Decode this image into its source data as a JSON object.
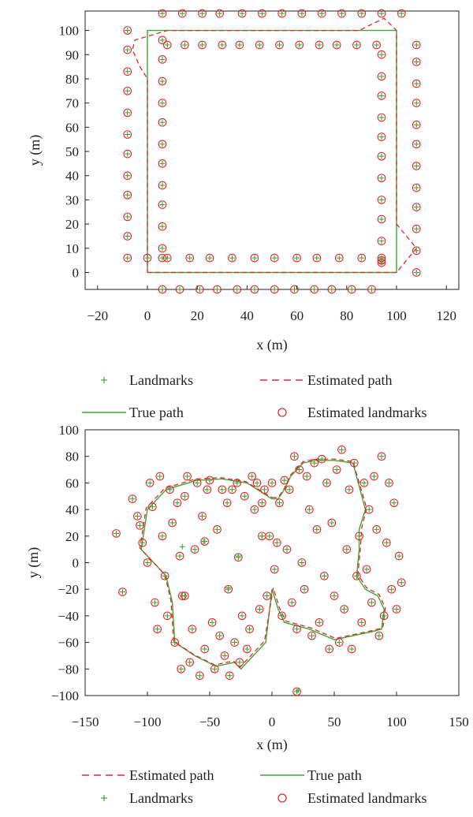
{
  "chart_data": [
    {
      "type": "scatter",
      "xlabel": "x (m)",
      "ylabel": "y (m)",
      "xlim": [
        -25,
        125
      ],
      "ylim": [
        -7,
        108
      ],
      "xticks": [
        "−20",
        "0",
        "20",
        "40",
        "60",
        "80",
        "100",
        "120"
      ],
      "xtick_values": [
        -20,
        0,
        20,
        40,
        60,
        80,
        100,
        120
      ],
      "yticks": [
        "0",
        "10",
        "20",
        "30",
        "40",
        "50",
        "60",
        "70",
        "80",
        "90",
        "100"
      ],
      "ytick_values": [
        0,
        10,
        20,
        30,
        40,
        50,
        60,
        70,
        80,
        90,
        100
      ],
      "legend": [
        {
          "label": "Landmarks",
          "marker": "plus",
          "color": "#3aa935"
        },
        {
          "label": "Estimated path",
          "marker": "dashed-line",
          "color": "#e8262b"
        },
        {
          "label": "True path",
          "marker": "solid-line",
          "color": "#3aa935"
        },
        {
          "label": "Estimated landmarks",
          "marker": "circle",
          "color": "#e8262b"
        }
      ],
      "legend_placement": "below",
      "true_path": {
        "x": [
          0,
          100,
          100,
          0,
          0
        ],
        "y": [
          0,
          0,
          100,
          100,
          0
        ]
      },
      "estimated_path": {
        "x": [
          0,
          100,
          104,
          108,
          100,
          100,
          95,
          85,
          8,
          -5,
          -6,
          -3,
          0,
          0
        ],
        "y": [
          0,
          0,
          5,
          10,
          20,
          100,
          105,
          100,
          100,
          96,
          92,
          85,
          80,
          0
        ]
      },
      "landmarks": {
        "x": [
          6,
          14,
          22,
          29,
          38,
          46,
          54,
          62,
          70,
          78,
          86,
          94,
          102,
          -8,
          -8,
          -8,
          -8,
          -8,
          -8,
          -8,
          -8,
          -8,
          -8,
          -8,
          -8,
          6,
          13,
          21,
          28,
          36,
          43,
          51,
          59,
          67,
          74,
          82,
          90,
          6,
          6,
          6,
          6,
          6,
          6,
          6,
          6,
          6,
          6,
          6,
          6,
          8,
          15,
          22,
          30,
          37,
          45,
          53,
          61,
          69,
          76,
          84,
          92,
          94,
          94,
          94,
          94,
          94,
          94,
          94,
          94,
          94,
          94,
          94,
          94,
          0,
          8,
          17,
          25,
          34,
          43,
          51,
          60,
          68,
          77,
          86,
          94,
          108,
          108,
          108,
          108,
          108,
          108,
          108,
          108,
          108,
          108,
          108,
          108
        ],
        "y": [
          107,
          107,
          107,
          107,
          107,
          107,
          107,
          107,
          107,
          107,
          107,
          107,
          107,
          6,
          15,
          23,
          32,
          40,
          49,
          57,
          66,
          75,
          83,
          92,
          100,
          -7,
          -7,
          -7,
          -7,
          -7,
          -7,
          -7,
          -7,
          -7,
          -7,
          -7,
          -7,
          10,
          19,
          28,
          36,
          45,
          53,
          62,
          70,
          79,
          88,
          96,
          6,
          94,
          94,
          94,
          94,
          94,
          94,
          94,
          94,
          94,
          94,
          94,
          94,
          4,
          13,
          22,
          30,
          39,
          48,
          56,
          64,
          73,
          81,
          90,
          5,
          6,
          6,
          6,
          6,
          6,
          6,
          6,
          6,
          6,
          6,
          6,
          6,
          0,
          9,
          18,
          27,
          35,
          44,
          53,
          61,
          70,
          78,
          87,
          94
        ]
      }
    },
    {
      "type": "scatter",
      "xlabel": "x (m)",
      "ylabel": "y (m)",
      "xlim": [
        -150,
        150
      ],
      "ylim": [
        -100,
        100
      ],
      "xticks": [
        "−150",
        "−100",
        "−50",
        "0",
        "50",
        "100",
        "150"
      ],
      "xtick_values": [
        -150,
        -100,
        -50,
        0,
        50,
        100,
        150
      ],
      "yticks": [
        "100",
        "80",
        "60",
        "40",
        "20",
        "0",
        "−20",
        "−40",
        "−60",
        "−80",
        "−100"
      ],
      "ytick_values": [
        100,
        80,
        60,
        40,
        20,
        0,
        -20,
        -40,
        -60,
        -80,
        -100
      ],
      "legend": [
        {
          "label": "Estimated path",
          "marker": "dashed-line",
          "color": "#e8262b"
        },
        {
          "label": "True path",
          "marker": "solid-line",
          "color": "#3aa935"
        },
        {
          "label": "Landmarks",
          "marker": "plus",
          "color": "#3aa935"
        },
        {
          "label": "Estimated landmarks",
          "marker": "circle",
          "color": "#e8262b"
        }
      ],
      "legend_placement": "below",
      "true_path": {
        "x": [
          0,
          5,
          10,
          15,
          25,
          35,
          50,
          65,
          75,
          70,
          70,
          68,
          75,
          85,
          90,
          88,
          80,
          65,
          50,
          30,
          10,
          5,
          0,
          -5,
          -15,
          -25,
          -30,
          -45,
          -62,
          -78,
          -80,
          -85,
          -90,
          -105,
          -100,
          -85,
          -60,
          -40,
          -20,
          0
        ],
        "y": [
          48,
          48,
          55,
          65,
          75,
          77,
          77,
          75,
          40,
          25,
          10,
          -10,
          -20,
          -25,
          -35,
          -50,
          -52,
          -55,
          -58,
          -50,
          -45,
          -35,
          -20,
          -60,
          -70,
          -80,
          -75,
          -78,
          -70,
          -60,
          -30,
          -10,
          -5,
          10,
          40,
          55,
          62,
          63,
          60,
          48
        ]
      },
      "estimated_path": {
        "x": [
          0,
          5,
          10,
          15,
          25,
          35,
          50,
          65,
          76,
          72,
          71,
          69,
          76,
          86,
          91,
          89,
          81,
          66,
          51,
          31,
          11,
          6,
          1,
          -6,
          -16,
          -26,
          -31,
          -46,
          -63,
          -79,
          -81,
          -86,
          -91,
          -106,
          -101,
          -86,
          -61,
          -41,
          -21,
          0
        ],
        "y": [
          49,
          49,
          56,
          66,
          76,
          78,
          78,
          76,
          41,
          26,
          11,
          -9,
          -19,
          -24,
          -34,
          -49,
          -51,
          -54,
          -57,
          -49,
          -44,
          -34,
          -19,
          -59,
          -69,
          -79,
          -74,
          -77,
          -69,
          -59,
          -29,
          -9,
          -4,
          11,
          41,
          56,
          63,
          64,
          61,
          49
        ]
      },
      "landmarks": {
        "x": [
          -125,
          -120,
          -112,
          -108,
          -106,
          -104,
          -100,
          -98,
          -96,
          -94,
          -92,
          -90,
          -88,
          -86,
          -84,
          -82,
          -80,
          -78,
          -76,
          -74,
          -72,
          -70,
          -68,
          -66,
          -64,
          -62,
          -60,
          -58,
          -56,
          -54,
          -52,
          -50,
          -48,
          -46,
          -44,
          -42,
          -40,
          -38,
          -36,
          -34,
          -32,
          -30,
          -28,
          -26,
          -24,
          -22,
          -20,
          -18,
          -16,
          -14,
          -12,
          -10,
          -8,
          -6,
          -4,
          -2,
          0,
          2,
          4,
          6,
          8,
          10,
          12,
          14,
          16,
          18,
          20,
          22,
          24,
          26,
          28,
          30,
          32,
          34,
          36,
          38,
          40,
          42,
          44,
          46,
          48,
          50,
          52,
          54,
          56,
          58,
          60,
          62,
          64,
          66,
          68,
          70,
          72,
          74,
          76,
          78,
          80,
          82,
          84,
          86,
          88,
          90,
          92,
          94,
          96,
          98,
          100,
          102,
          104,
          -70,
          -54,
          -27,
          -35,
          -8,
          -73,
          20
        ],
        "y": [
          22,
          -22,
          48,
          35,
          28,
          15,
          0,
          60,
          42,
          -30,
          -50,
          65,
          20,
          -10,
          -40,
          55,
          30,
          -60,
          45,
          5,
          -25,
          50,
          65,
          -75,
          -50,
          10,
          60,
          -85,
          35,
          -65,
          55,
          62,
          -45,
          -80,
          25,
          -55,
          55,
          -70,
          45,
          -85,
          55,
          -60,
          60,
          -75,
          -40,
          50,
          -65,
          -50,
          65,
          40,
          60,
          -35,
          45,
          55,
          -25,
          20,
          60,
          -5,
          15,
          45,
          -40,
          62,
          10,
          55,
          -30,
          80,
          -50,
          70,
          0,
          -20,
          65,
          40,
          -55,
          75,
          25,
          -45,
          78,
          -10,
          60,
          -65,
          30,
          -25,
          70,
          -60,
          85,
          -35,
          10,
          55,
          -65,
          75,
          -10,
          20,
          -45,
          60,
          -5,
          40,
          -30,
          65,
          25,
          -55,
          80,
          -40,
          15,
          60,
          -20,
          45,
          -35,
          5,
          -15,
          -25,
          16,
          4,
          -20,
          20,
          -80,
          -97
        ]
      },
      "extra_landmarks": {
        "x": [
          -72,
          -55,
          -27,
          -35,
          -8,
          21
        ],
        "y": [
          12,
          16,
          5,
          -19,
          20,
          -96
        ]
      }
    }
  ]
}
